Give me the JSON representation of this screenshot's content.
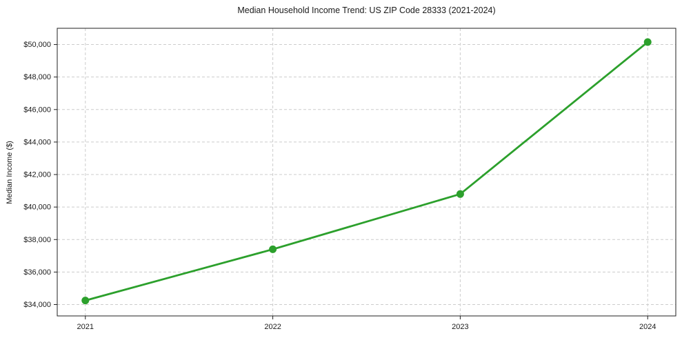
{
  "chart_data": {
    "type": "line",
    "title": "Median Household Income Trend: US ZIP Code 28333 (2021-2024)",
    "xlabel": "",
    "ylabel": "Median Income ($)",
    "x": [
      2021,
      2022,
      2023,
      2024
    ],
    "x_tick_labels": [
      "2021",
      "2022",
      "2023",
      "2024"
    ],
    "series": [
      {
        "name": "Median Household Income",
        "values": [
          34250,
          37400,
          40800,
          50150
        ]
      }
    ],
    "yticks": [
      34000,
      36000,
      38000,
      40000,
      42000,
      44000,
      46000,
      48000,
      50000
    ],
    "ytick_labels": [
      "$34,000",
      "$36,000",
      "$38,000",
      "$40,000",
      "$42,000",
      "$44,000",
      "$46,000",
      "$48,000",
      "$50,000"
    ],
    "ylim": [
      33300,
      51000
    ],
    "xlim": [
      2020.85,
      2024.15
    ],
    "grid": "dashed",
    "legend": "none",
    "line_color": "#2ca02c",
    "marker": "circle",
    "marker_radius": 5.5,
    "background_color": "#ffffff"
  }
}
